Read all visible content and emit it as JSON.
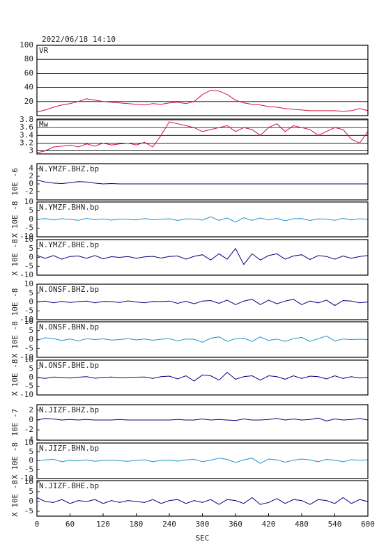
{
  "chart_data": [
    {
      "type": "line",
      "title": "2022/06/18 14:10",
      "label": "VR",
      "color": "#d0103a",
      "ylim": [
        0,
        100
      ],
      "yticks": [
        20,
        40,
        60,
        80,
        100
      ],
      "grid": true,
      "values": [
        5,
        8,
        12,
        15,
        17,
        20,
        24,
        22,
        20,
        19,
        18,
        17,
        16,
        15,
        17,
        16,
        18,
        19,
        17,
        20,
        30,
        36,
        35,
        30,
        22,
        18,
        16,
        15,
        13,
        12,
        10,
        9,
        8,
        7,
        7,
        7,
        7,
        6,
        7,
        10,
        7
      ]
    },
    {
      "type": "line",
      "label": "Mw",
      "color": "#d0103a",
      "ylim": [
        2.92,
        3.82
      ],
      "yticks": [
        3.0,
        3.2,
        3.4,
        3.6,
        3.8
      ],
      "grid": true,
      "values": [
        2.95,
        3.0,
        3.1,
        3.12,
        3.15,
        3.1,
        3.18,
        3.12,
        3.2,
        3.15,
        3.18,
        3.2,
        3.15,
        3.22,
        3.1,
        3.4,
        3.75,
        3.7,
        3.65,
        3.6,
        3.5,
        3.55,
        3.6,
        3.65,
        3.5,
        3.6,
        3.55,
        3.4,
        3.6,
        3.7,
        3.5,
        3.65,
        3.6,
        3.55,
        3.4,
        3.5,
        3.6,
        3.55,
        3.3,
        3.2,
        3.5
      ]
    },
    {
      "type": "line",
      "label": "N.YMZF.BHZ.bp",
      "scale_label": "10E -6",
      "color": "#000080",
      "ylim": [
        -4.2,
        5.3
      ],
      "yticks": [
        4,
        2,
        0,
        -2
      ],
      "values": [
        1,
        0.5,
        0.2,
        0.1,
        0.3,
        0.6,
        0.5,
        0.2,
        0,
        0.1,
        0,
        0,
        0,
        0,
        0,
        0,
        0,
        0,
        0,
        0,
        0,
        0,
        0,
        0,
        0,
        0,
        0,
        0,
        0,
        0,
        0,
        0,
        0,
        0,
        0,
        0,
        0,
        0,
        0,
        0,
        0
      ]
    },
    {
      "type": "line",
      "label": "N.YMZF.BHN.bp",
      "scale_label": "X 10E -8",
      "color": "#1e90d0",
      "ylim": [
        -10,
        10
      ],
      "yticks": [
        10,
        5,
        0,
        -5,
        -10
      ],
      "values": [
        0,
        0.5,
        -0.3,
        0.4,
        0,
        -0.5,
        0.6,
        -0.2,
        0.3,
        -0.4,
        0.2,
        0,
        -0.3,
        0.5,
        -0.2,
        0.1,
        0.4,
        -0.6,
        0.3,
        0.2,
        -0.4,
        1.5,
        -0.5,
        0.8,
        -1.5,
        1,
        -0.5,
        0.8,
        -0.3,
        0.6,
        -0.8,
        0.4,
        0.5,
        -0.6,
        0.3,
        0.2,
        -0.5,
        0.6,
        -0.3,
        0.4,
        0
      ]
    },
    {
      "type": "line",
      "label": "N.YMZF.BHE.bp",
      "scale_label": "X 10E -8",
      "color": "#000080",
      "ylim": [
        -10,
        10
      ],
      "yticks": [
        10,
        5,
        0,
        -5,
        -10
      ],
      "values": [
        1,
        -0.5,
        1,
        -1,
        0.5,
        0.8,
        -0.5,
        1,
        -0.8,
        0.4,
        0,
        0.5,
        -0.5,
        0.3,
        0.6,
        -0.4,
        0.5,
        0.8,
        -1,
        0.6,
        1.5,
        -1.5,
        2,
        -1,
        5,
        -4,
        2,
        -1.5,
        1,
        2,
        -1,
        0.8,
        1.5,
        -1.2,
        1,
        0.5,
        -1,
        0.8,
        -0.5,
        0.5,
        1
      ]
    },
    {
      "type": "line",
      "label": "N.ONSF.BHZ.bp",
      "scale_label": "10E -8",
      "color": "#000080",
      "ylim": [
        -10,
        10
      ],
      "yticks": [
        10,
        5,
        0,
        -5,
        -10
      ],
      "values": [
        0,
        0.5,
        -0.5,
        0.3,
        -0.3,
        0.2,
        0.5,
        -0.5,
        0.3,
        0.2,
        -0.3,
        0.6,
        0,
        -0.5,
        0.3,
        0.2,
        0.5,
        -0.8,
        0.4,
        -1,
        0.5,
        0.8,
        -0.8,
        1,
        -1.5,
        0.5,
        1.5,
        -1.5,
        1,
        -1,
        0.5,
        1.5,
        -1.5,
        0.5,
        -0.5,
        1,
        -2,
        0.8,
        0.5,
        -0.5,
        0
      ]
    },
    {
      "type": "line",
      "label": "N.ONSF.BHN.bp",
      "scale_label": "X 10E -8",
      "color": "#1e90d0",
      "ylim": [
        -10,
        10
      ],
      "yticks": [
        10,
        5,
        0,
        -5,
        -10
      ],
      "values": [
        -0.5,
        1,
        0.5,
        -0.5,
        0.3,
        -0.8,
        0.5,
        0,
        0.4,
        -0.3,
        0,
        0.5,
        -0.2,
        0.3,
        -0.4,
        0.2,
        0.5,
        -0.8,
        0.3,
        0.2,
        -1.5,
        0.8,
        1.5,
        -1,
        0.5,
        0.8,
        -1,
        1.5,
        -0.5,
        0.3,
        -1,
        0.5,
        1.2,
        -1,
        0.5,
        2,
        -0.8,
        0.3,
        0,
        0.2,
        0
      ]
    },
    {
      "type": "line",
      "label": "N.ONSF.BHE.bp",
      "scale_label": "X 10E -8",
      "color": "#000080",
      "ylim": [
        -10,
        10
      ],
      "yticks": [
        10,
        5,
        0,
        -5,
        -10
      ],
      "values": [
        0,
        -0.5,
        0.3,
        0,
        -0.3,
        0.2,
        0.5,
        -0.4,
        0,
        0.3,
        -0.2,
        0,
        0.2,
        0.3,
        -0.5,
        0.5,
        0.8,
        -0.8,
        1,
        -2,
        1.5,
        1,
        -1.5,
        3,
        -1,
        0.5,
        1,
        -1.5,
        1,
        0.5,
        -1,
        1,
        -0.5,
        0.8,
        0.5,
        -0.8,
        1,
        -0.5,
        0.5,
        -0.3,
        0
      ]
    },
    {
      "type": "line",
      "label": "N.JIZF.BHZ.bp",
      "scale_label": "10E -7",
      "color": "#000080",
      "ylim": [
        -4.1,
        3.1
      ],
      "yticks": [
        2,
        0,
        -2,
        -4
      ],
      "values": [
        0,
        0.3,
        0.2,
        0,
        0.1,
        0,
        0.1,
        0,
        0,
        0,
        0.1,
        0,
        0,
        0,
        0,
        0,
        0,
        0.1,
        0,
        0,
        0.2,
        0,
        0.1,
        0,
        -0.1,
        0.2,
        0,
        0,
        0.1,
        0.3,
        0,
        0.2,
        0,
        0.1,
        0.4,
        -0.2,
        0.2,
        0,
        0.1,
        0.3,
        0
      ]
    },
    {
      "type": "line",
      "label": "N.JIZF.BHN.bp",
      "scale_label": "X 10E -8",
      "color": "#1e90d0",
      "ylim": [
        -10,
        10
      ],
      "yticks": [
        10,
        5,
        0,
        -5,
        -10
      ],
      "values": [
        0,
        0.5,
        0.8,
        -0.5,
        0.3,
        0,
        0.5,
        -0.3,
        0.2,
        0.4,
        0,
        -0.3,
        0.3,
        0.5,
        -0.5,
        0.2,
        0.3,
        -0.2,
        0.5,
        0.8,
        -0.5,
        0.3,
        1.5,
        0.8,
        -1,
        0.5,
        1.5,
        -1.5,
        1,
        0.5,
        -0.8,
        0.3,
        1,
        0.5,
        -0.5,
        0.8,
        0.3,
        -0.5,
        0.6,
        0.3,
        0.5
      ]
    },
    {
      "type": "line",
      "label": "N.JIZF.BHE.bp",
      "scale_label": "X 10E -8",
      "color": "#000080",
      "ylim": [
        -7.5,
        10.7
      ],
      "yticks": [
        10,
        5,
        0,
        -5
      ],
      "xlabel": "SEC",
      "xlim": [
        0,
        600
      ],
      "xticks": [
        0,
        60,
        120,
        180,
        240,
        300,
        360,
        420,
        480,
        540,
        600
      ],
      "x": [
        0,
        15,
        30,
        45,
        60,
        75,
        90,
        105,
        120,
        135,
        150,
        165,
        180,
        195,
        210,
        225,
        240,
        255,
        270,
        285,
        300,
        315,
        330,
        345,
        360,
        375,
        390,
        405,
        420,
        435,
        450,
        465,
        480,
        495,
        510,
        525,
        540,
        555,
        570,
        585,
        600
      ],
      "values": [
        2,
        0,
        -0.5,
        1,
        -1,
        0.5,
        0,
        1,
        -1,
        0.5,
        -0.5,
        0.5,
        0,
        -0.5,
        1,
        -1,
        0.5,
        1,
        -1,
        0.5,
        -0.5,
        1,
        -1.5,
        1,
        0.5,
        -1,
        2,
        -1.5,
        -0.5,
        1.5,
        -1,
        1,
        0.5,
        -1.5,
        1,
        0.5,
        -1,
        2,
        -1,
        1,
        0
      ]
    }
  ]
}
